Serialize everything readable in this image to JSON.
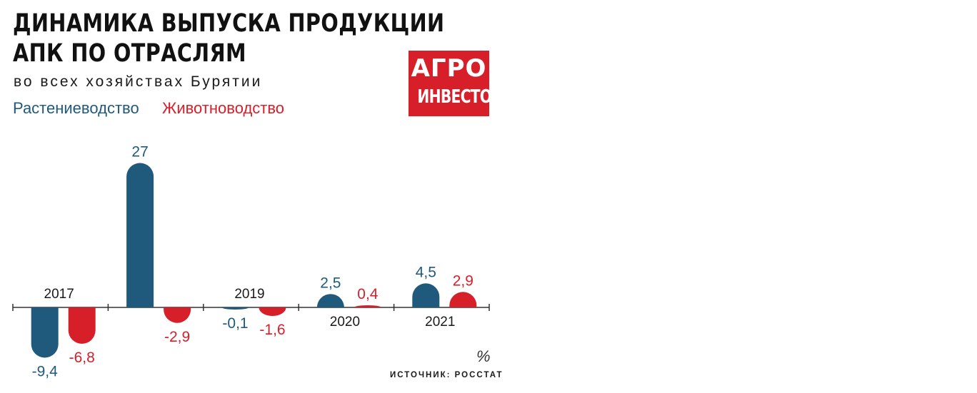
{
  "header": {
    "title_line1": "ДИНАМИКА ВЫПУСКА ПРОДУКЦИИ",
    "title_line2": "АПК ПО ОТРАСЛЯМ",
    "subtitle": "во всех хозяйствах Бурятии"
  },
  "logo": {
    "line1": "АГРО",
    "line2": "ИНВЕСТОР"
  },
  "colors": {
    "crop": "#1f5a7d",
    "livestock": "#d71f2a",
    "axis": "#333333"
  },
  "chart_data": {
    "type": "bar",
    "categories": [
      "2017",
      "",
      "2019",
      "2020",
      "2021"
    ],
    "series": [
      {
        "name": "Растениеводство",
        "values": [
          -9.4,
          27,
          -0.1,
          2.5,
          4.5
        ],
        "labels": [
          "-9,4",
          "27",
          "-0,1",
          "2,5",
          "4,5"
        ]
      },
      {
        "name": "Животноводство",
        "values": [
          -6.8,
          -2.9,
          -1.6,
          0.4,
          2.9
        ],
        "labels": [
          "-6,8",
          "-2,9",
          "-1,6",
          "0,4",
          "2,9"
        ]
      }
    ],
    "legend": "top-left",
    "grid": false,
    "unit": "%",
    "source": "ИСТОЧНИК: РОССТАТ"
  }
}
